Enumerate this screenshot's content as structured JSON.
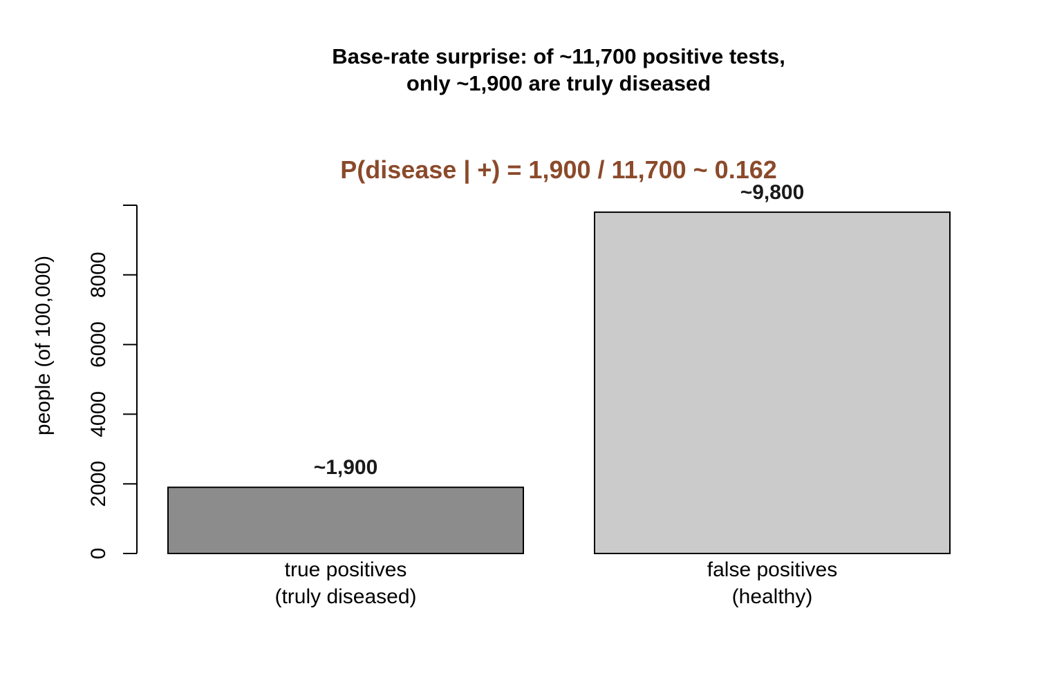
{
  "chart_data": {
    "type": "bar",
    "title_lines": [
      "Base-rate surprise: of ~11,700 positive tests,",
      "only ~1,900 are truly diseased"
    ],
    "annotation": "P(disease | +) = 1,900 / 11,700  ~ 0.162",
    "categories": [
      [
        "true positives",
        "(truly diseased)"
      ],
      [
        "false positives",
        "(healthy)"
      ]
    ],
    "values": [
      1900,
      9800
    ],
    "data_labels": [
      "~1,900",
      "~9,800"
    ],
    "ylabel": "people (of 100,000)",
    "ylim": [
      0,
      10000
    ],
    "yticks": [
      0,
      2000,
      4000,
      6000,
      8000
    ],
    "grid": false,
    "colors": {
      "bars": [
        "#8c8c8c",
        "#cbcbcb"
      ],
      "annotation": "#8b4a2b",
      "axis": "#000000"
    }
  }
}
